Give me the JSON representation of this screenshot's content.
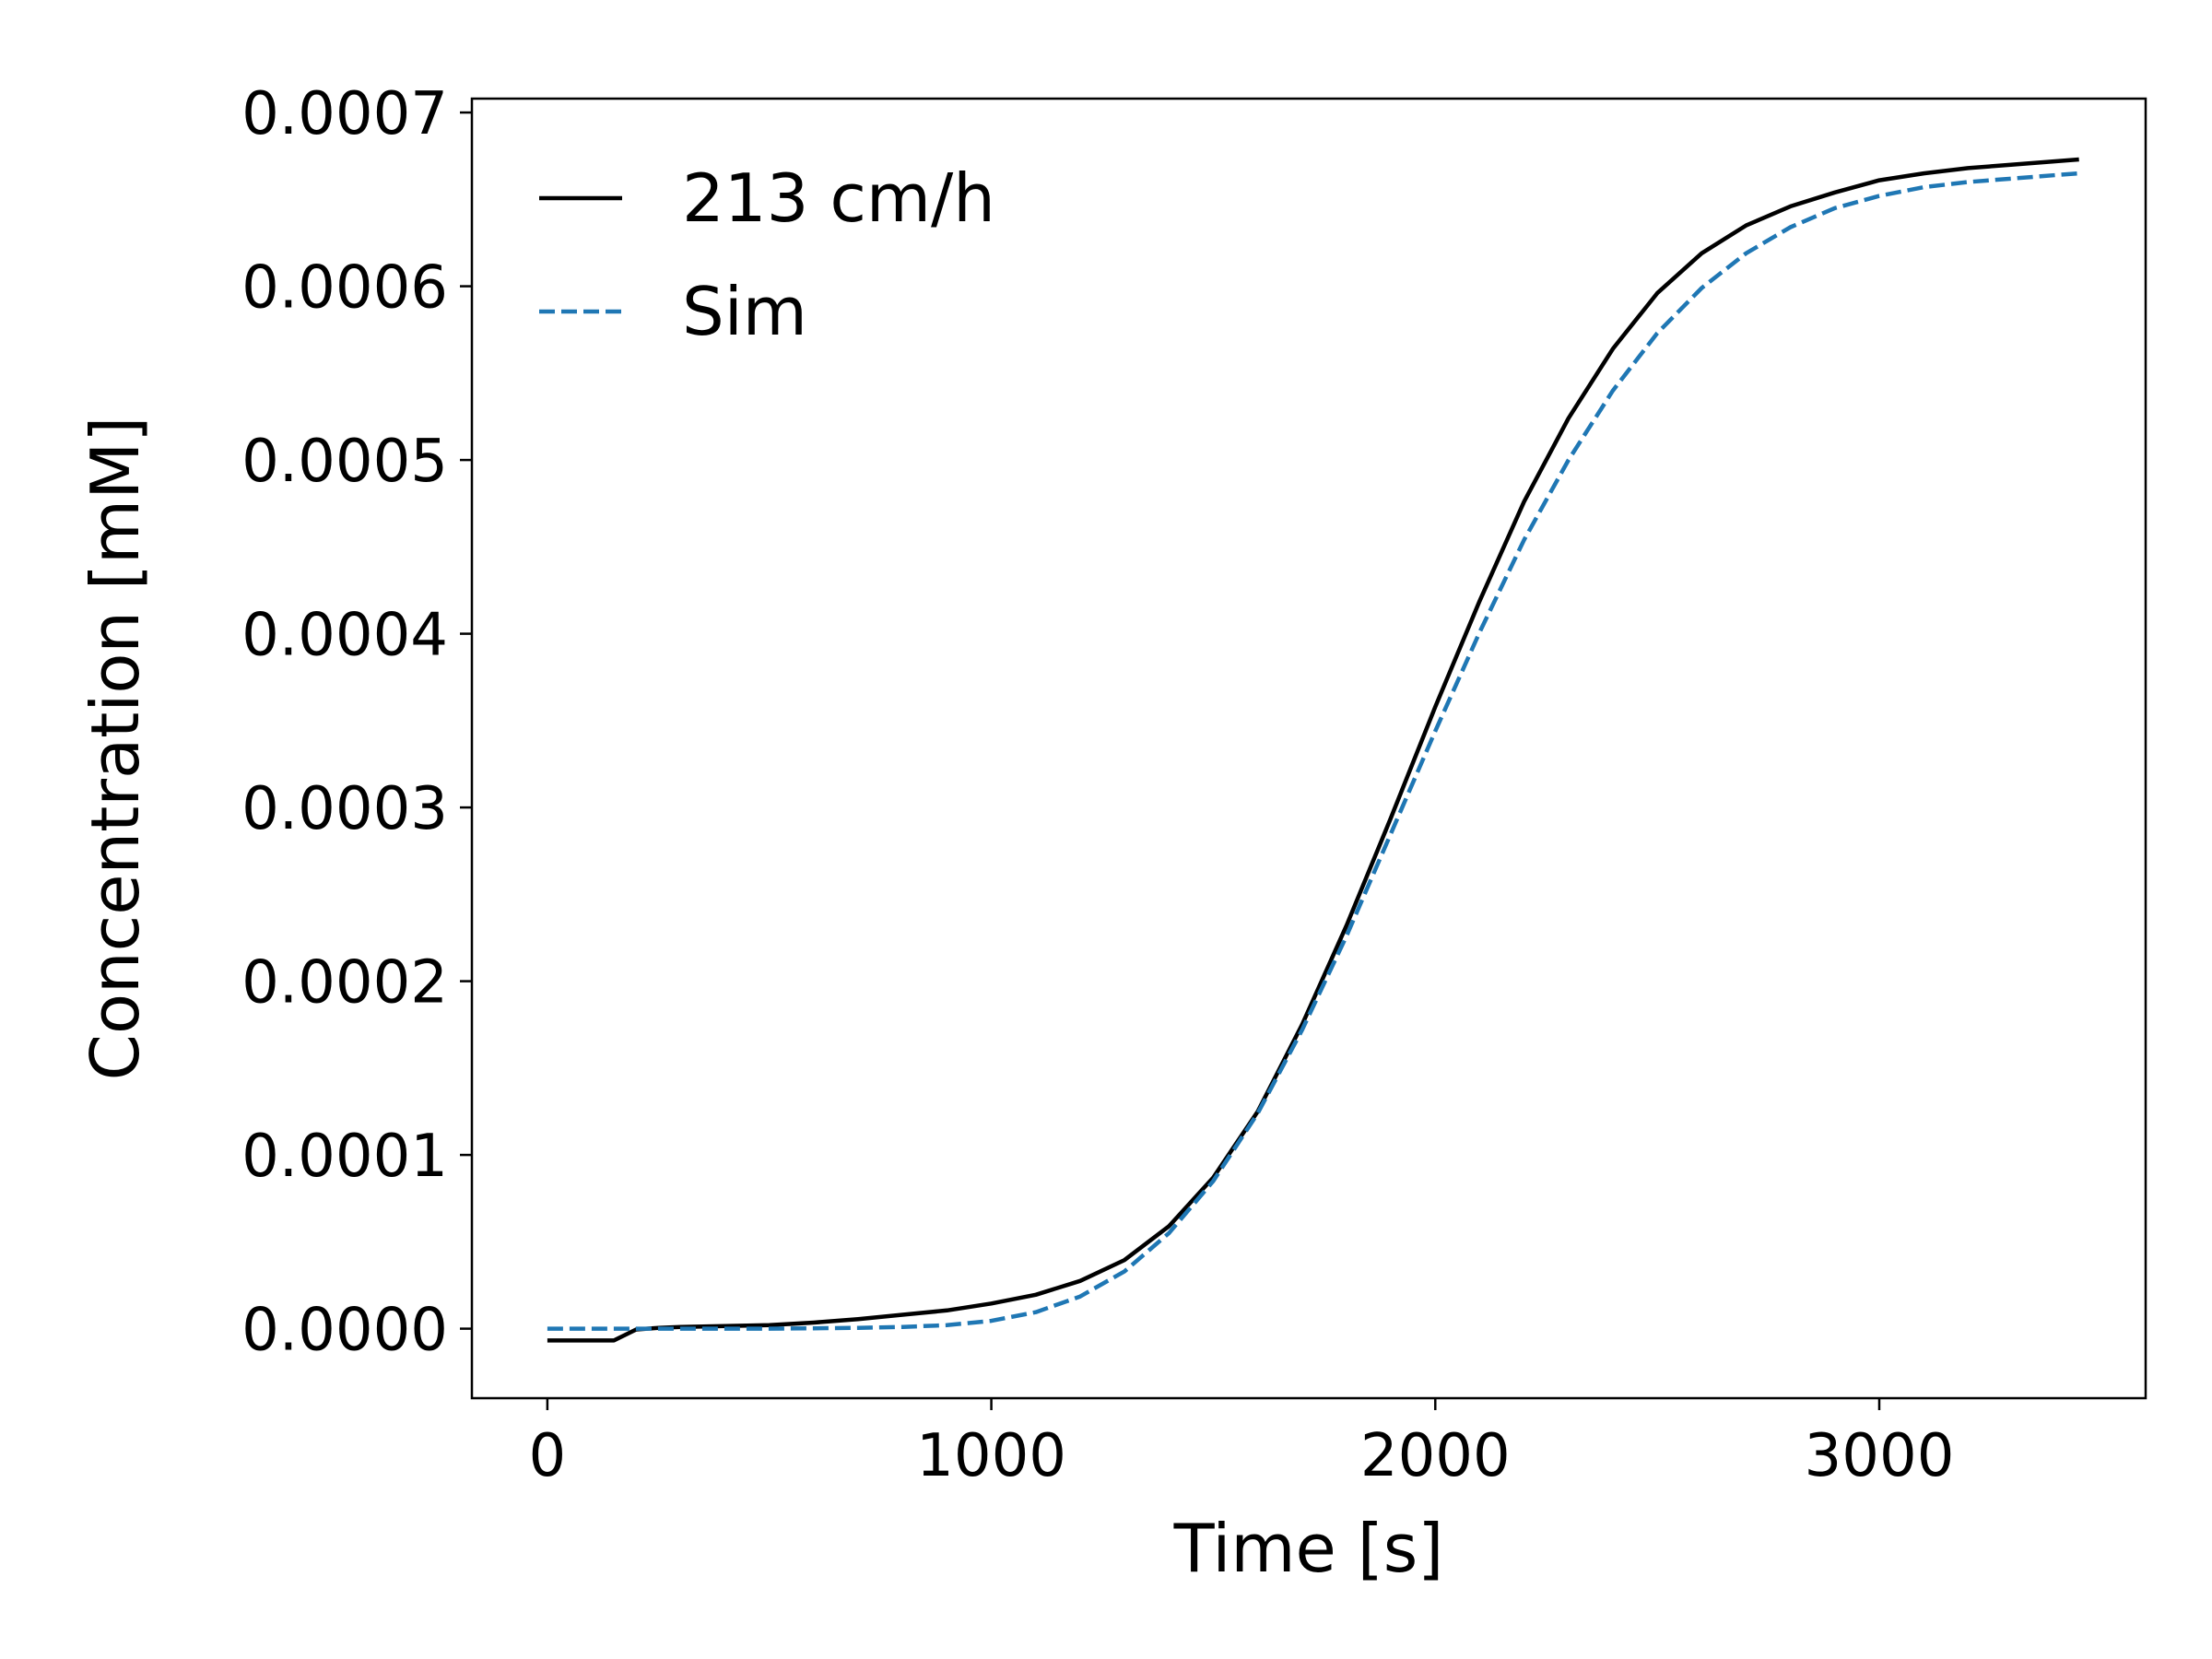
{
  "chart_data": {
    "type": "line",
    "title": "",
    "xlabel": "Time [s]",
    "ylabel": "Concentration [mM]",
    "xlim": [
      -170,
      3600
    ],
    "ylim": [
      -4e-05,
      0.000708
    ],
    "x_ticks": [
      0,
      1000,
      2000,
      3000
    ],
    "x_tick_labels": [
      "0",
      "1000",
      "2000",
      "3000"
    ],
    "y_ticks": [
      0,
      0.0001,
      0.0002,
      0.0003,
      0.0004,
      0.0005,
      0.0006,
      0.0007
    ],
    "y_tick_labels": [
      "0.0000",
      "0.0001",
      "0.0002",
      "0.0003",
      "0.0004",
      "0.0005",
      "0.0006",
      "0.0007"
    ],
    "grid": false,
    "legend_position": "top-left",
    "series": [
      {
        "name": "213 cm/h",
        "color": "#000000",
        "style": "solid",
        "x": [
          0,
          50,
          100,
          150,
          200,
          250,
          300,
          400,
          500,
          600,
          700,
          800,
          900,
          1000,
          1100,
          1200,
          1300,
          1400,
          1500,
          1600,
          1700,
          1800,
          1900,
          2000,
          2100,
          2200,
          2300,
          2400,
          2500,
          2600,
          2700,
          2800,
          2900,
          3000,
          3100,
          3200,
          3300,
          3400,
          3450
        ],
        "y": [
          -6.8e-06,
          -6.8e-06,
          -6.8e-06,
          -6.8e-06,
          -5e-07,
          5e-07,
          1e-06,
          1.5e-06,
          2e-06,
          3.5e-06,
          5.5e-06,
          8e-06,
          1.05e-05,
          1.45e-05,
          1.95e-05,
          2.75e-05,
          3.95e-05,
          5.9e-05,
          8.7e-05,
          0.000125,
          0.000175,
          0.000232,
          0.000294,
          0.000358,
          0.000419,
          0.000476,
          0.000524,
          0.000564,
          0.000596,
          0.000619,
          0.000635,
          0.000646,
          0.000654,
          0.000661,
          0.000665,
          0.000668,
          0.00067,
          0.000672,
          0.000673
        ]
      },
      {
        "name": "Sim",
        "color": "#1f77b4",
        "style": "dashed",
        "x": [
          0,
          100,
          200,
          300,
          400,
          500,
          600,
          700,
          800,
          900,
          1000,
          1100,
          1200,
          1300,
          1400,
          1500,
          1600,
          1700,
          1800,
          1900,
          2000,
          2100,
          2200,
          2300,
          2400,
          2500,
          2600,
          2700,
          2800,
          2900,
          3000,
          3100,
          3200,
          3300,
          3400,
          3450
        ],
        "y": [
          0,
          0,
          0,
          0,
          0,
          0,
          2e-07,
          5e-07,
          1e-06,
          2e-06,
          4.5e-06,
          9.5e-06,
          1.85e-05,
          3.3e-05,
          5.5e-05,
          8.5e-05,
          0.000124,
          0.000172,
          0.000226,
          0.000285,
          0.000344,
          0.000401,
          0.000454,
          0.0005,
          0.00054,
          0.000573,
          0.000599,
          0.000619,
          0.000634,
          0.000645,
          0.000652,
          0.000657,
          0.00066,
          0.000662,
          0.000664,
          0.000665
        ]
      }
    ]
  }
}
